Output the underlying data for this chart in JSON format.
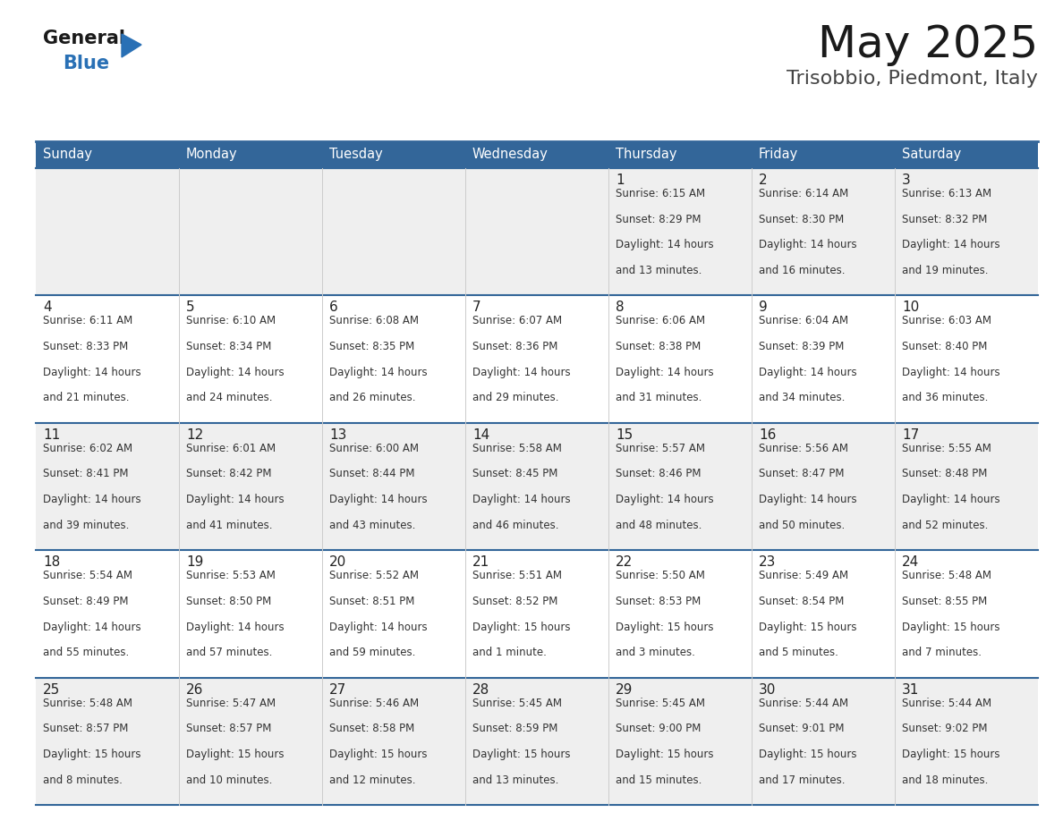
{
  "title": "May 2025",
  "subtitle": "Trisobbio, Piedmont, Italy",
  "days_of_week": [
    "Sunday",
    "Monday",
    "Tuesday",
    "Wednesday",
    "Thursday",
    "Friday",
    "Saturday"
  ],
  "header_bg": "#336699",
  "header_text": "#ffffff",
  "odd_row_bg": "#efefef",
  "even_row_bg": "#ffffff",
  "text_color": "#333333",
  "day_num_color": "#222222",
  "line_color": "#336699",
  "calendar": [
    [
      null,
      null,
      null,
      null,
      {
        "day": 1,
        "sunrise": "6:15 AM",
        "sunset": "8:29 PM",
        "daylight": "14 hours and 13 minutes."
      },
      {
        "day": 2,
        "sunrise": "6:14 AM",
        "sunset": "8:30 PM",
        "daylight": "14 hours and 16 minutes."
      },
      {
        "day": 3,
        "sunrise": "6:13 AM",
        "sunset": "8:32 PM",
        "daylight": "14 hours and 19 minutes."
      }
    ],
    [
      {
        "day": 4,
        "sunrise": "6:11 AM",
        "sunset": "8:33 PM",
        "daylight": "14 hours and 21 minutes."
      },
      {
        "day": 5,
        "sunrise": "6:10 AM",
        "sunset": "8:34 PM",
        "daylight": "14 hours and 24 minutes."
      },
      {
        "day": 6,
        "sunrise": "6:08 AM",
        "sunset": "8:35 PM",
        "daylight": "14 hours and 26 minutes."
      },
      {
        "day": 7,
        "sunrise": "6:07 AM",
        "sunset": "8:36 PM",
        "daylight": "14 hours and 29 minutes."
      },
      {
        "day": 8,
        "sunrise": "6:06 AM",
        "sunset": "8:38 PM",
        "daylight": "14 hours and 31 minutes."
      },
      {
        "day": 9,
        "sunrise": "6:04 AM",
        "sunset": "8:39 PM",
        "daylight": "14 hours and 34 minutes."
      },
      {
        "day": 10,
        "sunrise": "6:03 AM",
        "sunset": "8:40 PM",
        "daylight": "14 hours and 36 minutes."
      }
    ],
    [
      {
        "day": 11,
        "sunrise": "6:02 AM",
        "sunset": "8:41 PM",
        "daylight": "14 hours and 39 minutes."
      },
      {
        "day": 12,
        "sunrise": "6:01 AM",
        "sunset": "8:42 PM",
        "daylight": "14 hours and 41 minutes."
      },
      {
        "day": 13,
        "sunrise": "6:00 AM",
        "sunset": "8:44 PM",
        "daylight": "14 hours and 43 minutes."
      },
      {
        "day": 14,
        "sunrise": "5:58 AM",
        "sunset": "8:45 PM",
        "daylight": "14 hours and 46 minutes."
      },
      {
        "day": 15,
        "sunrise": "5:57 AM",
        "sunset": "8:46 PM",
        "daylight": "14 hours and 48 minutes."
      },
      {
        "day": 16,
        "sunrise": "5:56 AM",
        "sunset": "8:47 PM",
        "daylight": "14 hours and 50 minutes."
      },
      {
        "day": 17,
        "sunrise": "5:55 AM",
        "sunset": "8:48 PM",
        "daylight": "14 hours and 52 minutes."
      }
    ],
    [
      {
        "day": 18,
        "sunrise": "5:54 AM",
        "sunset": "8:49 PM",
        "daylight": "14 hours and 55 minutes."
      },
      {
        "day": 19,
        "sunrise": "5:53 AM",
        "sunset": "8:50 PM",
        "daylight": "14 hours and 57 minutes."
      },
      {
        "day": 20,
        "sunrise": "5:52 AM",
        "sunset": "8:51 PM",
        "daylight": "14 hours and 59 minutes."
      },
      {
        "day": 21,
        "sunrise": "5:51 AM",
        "sunset": "8:52 PM",
        "daylight": "15 hours and 1 minute."
      },
      {
        "day": 22,
        "sunrise": "5:50 AM",
        "sunset": "8:53 PM",
        "daylight": "15 hours and 3 minutes."
      },
      {
        "day": 23,
        "sunrise": "5:49 AM",
        "sunset": "8:54 PM",
        "daylight": "15 hours and 5 minutes."
      },
      {
        "day": 24,
        "sunrise": "5:48 AM",
        "sunset": "8:55 PM",
        "daylight": "15 hours and 7 minutes."
      }
    ],
    [
      {
        "day": 25,
        "sunrise": "5:48 AM",
        "sunset": "8:57 PM",
        "daylight": "15 hours and 8 minutes."
      },
      {
        "day": 26,
        "sunrise": "5:47 AM",
        "sunset": "8:57 PM",
        "daylight": "15 hours and 10 minutes."
      },
      {
        "day": 27,
        "sunrise": "5:46 AM",
        "sunset": "8:58 PM",
        "daylight": "15 hours and 12 minutes."
      },
      {
        "day": 28,
        "sunrise": "5:45 AM",
        "sunset": "8:59 PM",
        "daylight": "15 hours and 13 minutes."
      },
      {
        "day": 29,
        "sunrise": "5:45 AM",
        "sunset": "9:00 PM",
        "daylight": "15 hours and 15 minutes."
      },
      {
        "day": 30,
        "sunrise": "5:44 AM",
        "sunset": "9:01 PM",
        "daylight": "15 hours and 17 minutes."
      },
      {
        "day": 31,
        "sunrise": "5:44 AM",
        "sunset": "9:02 PM",
        "daylight": "15 hours and 18 minutes."
      }
    ]
  ]
}
